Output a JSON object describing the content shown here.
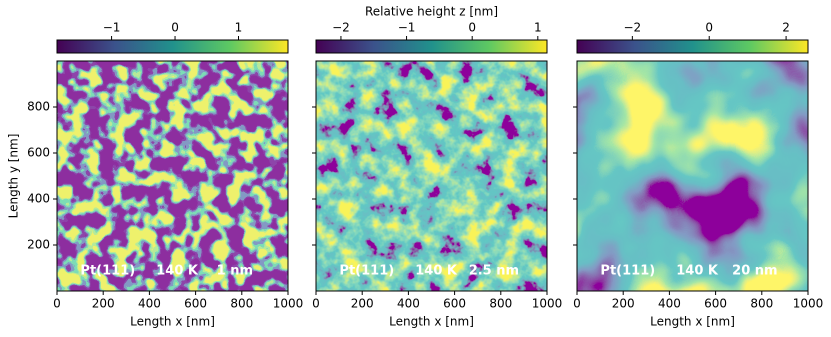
{
  "chart_data": [
    {
      "type": "heatmap",
      "xlabel": "Length x  [nm]",
      "ylabel": "Length y  [nm]",
      "xlim": [
        0,
        1000
      ],
      "ylim": [
        0,
        1000
      ],
      "xticks": [
        0,
        200,
        400,
        600,
        800,
        1000
      ],
      "yticks": [
        200,
        400,
        600,
        800
      ],
      "ytick_labels": true,
      "clim": [
        -1.86,
        1.78
      ],
      "cticks": [
        {
          "value": -1,
          "label": "−1"
        },
        0,
        1
      ],
      "annotations": [
        "Pt(111)",
        "140 K",
        "1 nm"
      ]
    },
    {
      "type": "heatmap",
      "xlabel": "Length x  [nm]",
      "colorbar_label": "Relative height z  [nm]",
      "xlim": [
        0,
        1000
      ],
      "ylim": [
        0,
        1000
      ],
      "xticks": [
        0,
        200,
        400,
        600,
        800,
        1000
      ],
      "yticks": [
        200,
        400,
        600,
        800
      ],
      "ytick_labels": false,
      "clim": [
        -2.38,
        1.14
      ],
      "cticks": [
        {
          "value": -2,
          "label": "−2"
        },
        {
          "value": -1,
          "label": "−1"
        },
        0,
        1
      ],
      "annotations": [
        "Pt(111)",
        "140 K",
        "2.5 nm"
      ]
    },
    {
      "type": "heatmap",
      "xlabel": "Length x  [nm]",
      "xlim": [
        0,
        1000
      ],
      "ylim": [
        0,
        1000
      ],
      "xticks": [
        0,
        200,
        400,
        600,
        800,
        1000
      ],
      "yticks": [
        200,
        400,
        600,
        800
      ],
      "ytick_labels": false,
      "clim": [
        -3.44,
        2.57
      ],
      "cticks": [
        {
          "value": -2,
          "label": "−2"
        },
        0,
        2
      ],
      "annotations": [
        "Pt(111)",
        "140 K",
        "20 nm"
      ]
    }
  ]
}
